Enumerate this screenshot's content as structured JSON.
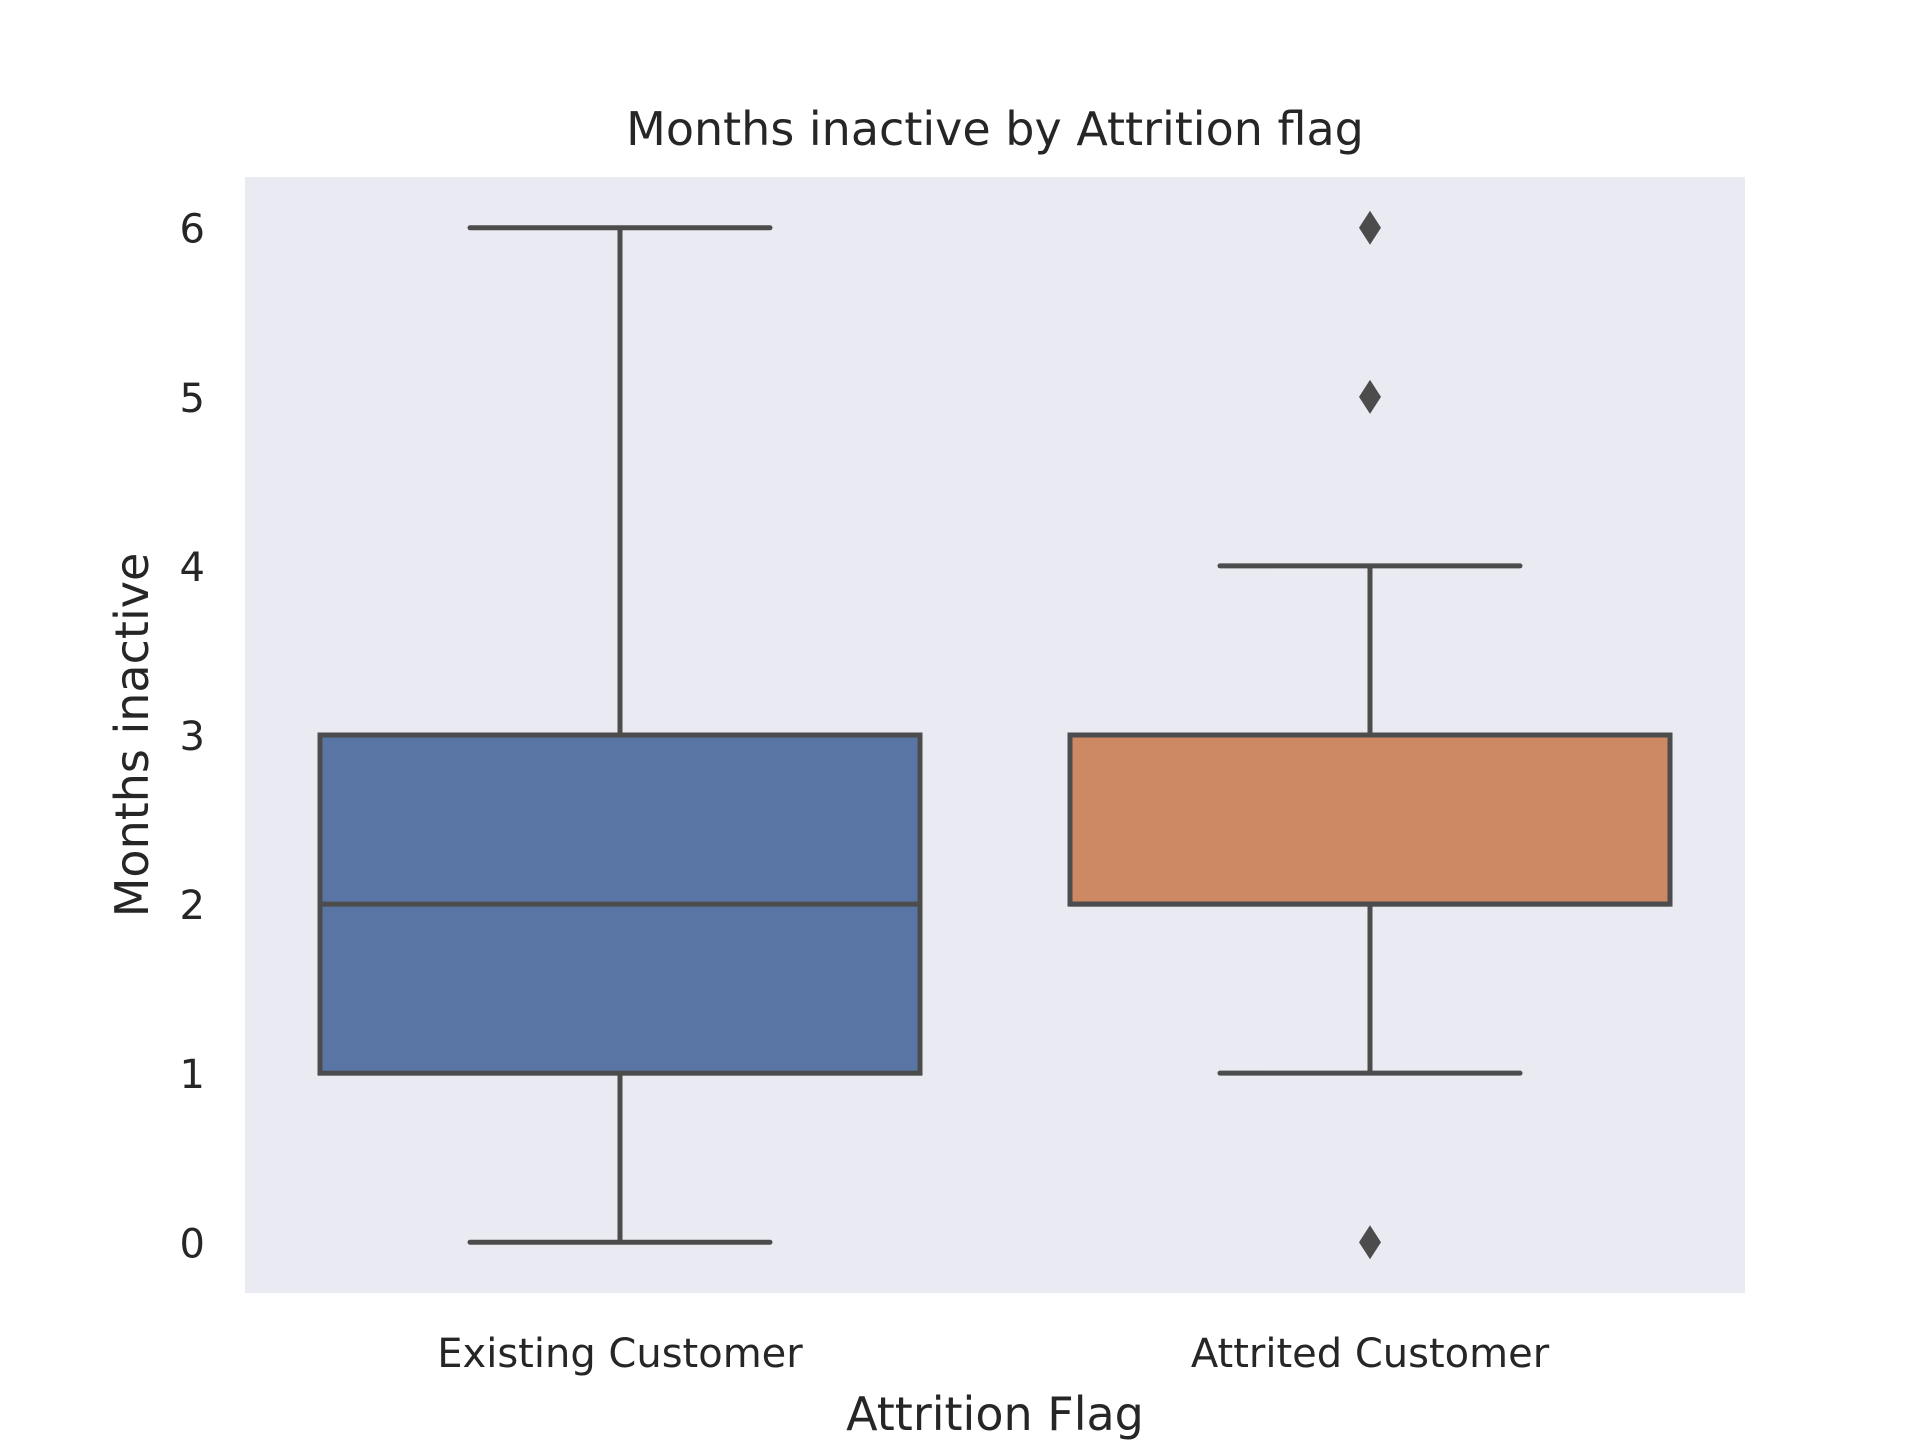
{
  "chart_data": {
    "type": "box",
    "title": "Months inactive by Attrition flag",
    "xlabel": "Attrition Flag",
    "ylabel": "Months inactive",
    "ylim": [
      -0.3,
      6.3
    ],
    "yticks": [
      "0",
      "1",
      "2",
      "3",
      "4",
      "5",
      "6"
    ],
    "categories": [
      "Existing Customer",
      "Attrited Customer"
    ],
    "boxes": [
      {
        "category": "Existing Customer",
        "whisker_low": 0,
        "q1": 1,
        "median": 2,
        "q3": 3,
        "whisker_high": 6,
        "outliers": [],
        "color": "#5875a4"
      },
      {
        "category": "Attrited Customer",
        "whisker_low": 1,
        "q1": 2,
        "median": 2,
        "q3": 3,
        "whisker_high": 4,
        "outliers": [
          0,
          5,
          6
        ],
        "color": "#cc8963"
      }
    ],
    "background_color": "#eaeaf2",
    "line_color": "#4c4c4c",
    "grid": false,
    "legend": "none"
  }
}
